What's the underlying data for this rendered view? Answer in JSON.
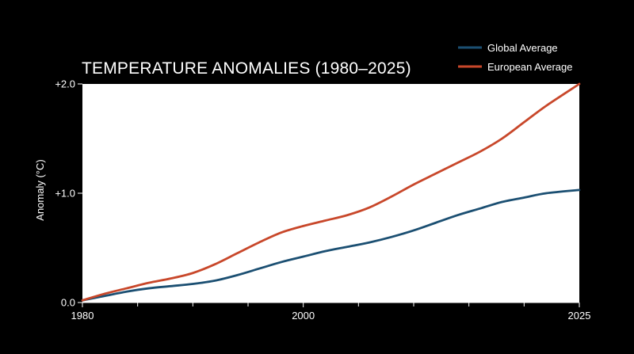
{
  "chart_data": {
    "type": "line",
    "title": "TEMPERATURE ANOMALIES (1980–2025)",
    "xlabel": "",
    "ylabel": "Anomaly (°C)",
    "xlim": [
      1980,
      2025
    ],
    "ylim": [
      0,
      2
    ],
    "x_ticks": [
      1980,
      2000,
      2025
    ],
    "x_tick_labels": [
      "1980",
      "2000",
      "2025"
    ],
    "x_minor_ticks": [
      1985,
      1990,
      1995,
      2005,
      2010,
      2015,
      2020
    ],
    "y_ticks": [
      0,
      1,
      2
    ],
    "y_tick_labels": [
      "0.0",
      "+1.0",
      "+2.0"
    ],
    "grid": false,
    "legend_position": "top-right",
    "plot_background": "#ffffff",
    "page_background": "#000000",
    "series": [
      {
        "name": "Global Average",
        "color": "#1b4f72",
        "x": [
          1980,
          1982,
          1984,
          1986,
          1988,
          1990,
          1992,
          1994,
          1996,
          1998,
          2000,
          2002,
          2004,
          2006,
          2008,
          2010,
          2012,
          2014,
          2016,
          2018,
          2020,
          2022,
          2025
        ],
        "values": [
          0.02,
          0.06,
          0.1,
          0.13,
          0.15,
          0.17,
          0.2,
          0.25,
          0.31,
          0.37,
          0.42,
          0.47,
          0.51,
          0.55,
          0.6,
          0.66,
          0.73,
          0.8,
          0.86,
          0.92,
          0.96,
          1.0,
          1.03
        ]
      },
      {
        "name": "European Average",
        "color": "#c8472a",
        "x": [
          1980,
          1982,
          1984,
          1986,
          1988,
          1990,
          1992,
          1994,
          1996,
          1998,
          2000,
          2002,
          2004,
          2006,
          2008,
          2010,
          2012,
          2014,
          2016,
          2018,
          2020,
          2022,
          2025
        ],
        "values": [
          0.02,
          0.08,
          0.13,
          0.18,
          0.22,
          0.27,
          0.35,
          0.45,
          0.55,
          0.64,
          0.7,
          0.75,
          0.8,
          0.87,
          0.97,
          1.08,
          1.18,
          1.28,
          1.38,
          1.5,
          1.65,
          1.8,
          2.0
        ]
      }
    ]
  }
}
